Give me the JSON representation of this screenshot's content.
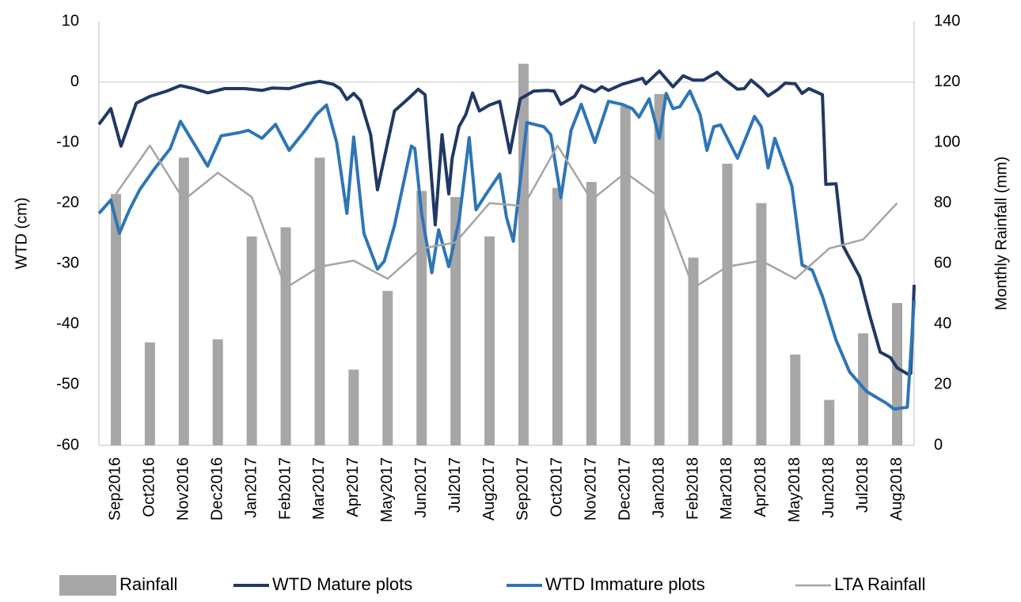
{
  "chart_data": {
    "type": "combo",
    "y_label": "WTD (cm)",
    "y2_label": "Monthly Rainfall (mm)",
    "categories": [
      "Sep2016",
      "Oct2016",
      "Nov2016",
      "Dec2016",
      "Jan2017",
      "Feb2017",
      "Mar2017",
      "Apr2017",
      "May2017",
      "Jun2017",
      "Jul2017",
      "Aug2017",
      "Sep2017",
      "Oct2017",
      "Nov2017",
      "Dec2017",
      "Jan2018",
      "Feb2018",
      "Mar2018",
      "Apr2018",
      "May2018",
      "Jun2018",
      "Jul2018",
      "Aug2018"
    ],
    "ylim": [
      -60,
      10
    ],
    "yticks": [
      -60,
      -50,
      -40,
      -30,
      -20,
      -10,
      0,
      10
    ],
    "y2lim": [
      0,
      140
    ],
    "y2ticks": [
      0,
      20,
      40,
      60,
      80,
      100,
      120,
      140
    ],
    "series": [
      {
        "name": "Rainfall",
        "type": "bar",
        "axis": "y2",
        "color": "#a6a6a6",
        "values": [
          83,
          34,
          95,
          35,
          69,
          72,
          95,
          25,
          51,
          84,
          82,
          69,
          126,
          85,
          87,
          112,
          116,
          62,
          93,
          80,
          30,
          15,
          37,
          47
        ]
      },
      {
        "name": "WTD Mature plots",
        "type": "line",
        "color": "#203864",
        "x": [
          -0.5,
          -0.15,
          0.15,
          0.6,
          1.0,
          1.5,
          1.9,
          2.3,
          2.7,
          3.2,
          3.8,
          4.3,
          4.6,
          5.1,
          5.6,
          6.0,
          6.4,
          6.6,
          6.8,
          7.0,
          7.2,
          7.5,
          7.7,
          7.9,
          8.2,
          8.6,
          8.9,
          9.1,
          9.3,
          9.4,
          9.6,
          9.8,
          9.9,
          10.1,
          10.3,
          10.5,
          10.7,
          11.0,
          11.3,
          11.6,
          11.9,
          12.3,
          12.7,
          12.9,
          13.1,
          13.5,
          13.7,
          14.1,
          14.3,
          14.5,
          14.9,
          15.2,
          15.5,
          15.6,
          16.0,
          16.4,
          16.7,
          17.0,
          17.3,
          17.7,
          17.9,
          18.3,
          18.5,
          18.7,
          19.0,
          19.2,
          19.5,
          19.7,
          20.0,
          20.2,
          20.4,
          20.8,
          20.9,
          21.2,
          21.4,
          21.9,
          22.2,
          22.5,
          22.8,
          23.0,
          23.3,
          23.4,
          23.5
        ],
        "values": [
          -7.0,
          -4.4,
          -10.6,
          -3.5,
          -2.4,
          -1.5,
          -0.6,
          -1.1,
          -1.8,
          -1.1,
          -1.1,
          -1.4,
          -1.0,
          -1.1,
          -0.3,
          0.1,
          -0.4,
          -1.1,
          -2.9,
          -1.9,
          -3.1,
          -8.7,
          -17.8,
          -12.6,
          -4.8,
          -2.8,
          -1.2,
          -2.1,
          -16.5,
          -23.6,
          -8.7,
          -18.5,
          -12.6,
          -7.4,
          -5.4,
          -1.8,
          -4.8,
          -3.8,
          -3.2,
          -11.7,
          -2.8,
          -1.5,
          -1.4,
          -1.5,
          -3.7,
          -2.4,
          -0.6,
          -1.6,
          -0.8,
          -1.4,
          -0.4,
          0.1,
          0.6,
          -0.3,
          1.8,
          -0.8,
          1.0,
          0.3,
          0.3,
          1.6,
          0.5,
          -1.2,
          -1.1,
          0.3,
          -1.1,
          -2.3,
          -1.2,
          -0.2,
          -0.3,
          -1.9,
          -1.1,
          -2.1,
          -16.9,
          -16.8,
          -27.0,
          -32.2,
          -38.7,
          -44.6,
          -45.5,
          -47.2,
          -48.2,
          -48.1,
          -33.5
        ]
      },
      {
        "name": "WTD Immature plots",
        "type": "line",
        "color": "#2e75b6",
        "x": [
          -0.5,
          -0.15,
          0.1,
          0.4,
          0.7,
          1.1,
          1.6,
          1.9,
          2.3,
          2.7,
          3.1,
          3.6,
          3.9,
          4.3,
          4.7,
          5.1,
          5.6,
          5.9,
          6.2,
          6.5,
          6.8,
          7.0,
          7.3,
          7.7,
          7.9,
          8.2,
          8.7,
          8.8,
          9.0,
          9.3,
          9.5,
          9.8,
          10.1,
          10.4,
          10.6,
          10.9,
          11.3,
          11.5,
          11.7,
          12.1,
          12.6,
          12.8,
          13.1,
          13.4,
          13.7,
          14.1,
          14.5,
          14.9,
          15.2,
          15.4,
          15.7,
          16.0,
          16.2,
          16.4,
          16.6,
          16.9,
          17.2,
          17.4,
          17.6,
          17.8,
          18.3,
          18.8,
          19.0,
          19.2,
          19.4,
          19.9,
          20.2,
          20.5,
          20.8,
          21.2,
          21.6,
          22.1,
          22.7,
          22.9,
          23.3,
          23.5
        ],
        "values": [
          -21.7,
          -19.5,
          -25.0,
          -21.1,
          -17.8,
          -14.6,
          -11.0,
          -6.5,
          -10.2,
          -13.9,
          -8.9,
          -8.4,
          -8.0,
          -9.3,
          -7.0,
          -11.3,
          -7.8,
          -5.4,
          -3.8,
          -10.0,
          -21.7,
          -9.1,
          -25.0,
          -30.9,
          -29.6,
          -23.7,
          -10.6,
          -11.0,
          -21.7,
          -31.5,
          -24.4,
          -30.5,
          -23.0,
          -9.2,
          -21.1,
          -18.5,
          -15.2,
          -22.4,
          -26.3,
          -6.7,
          -7.4,
          -8.7,
          -19.1,
          -8.0,
          -3.7,
          -10.0,
          -3.2,
          -3.7,
          -4.4,
          -5.8,
          -2.8,
          -9.3,
          -1.9,
          -4.4,
          -4.1,
          -1.5,
          -5.4,
          -11.3,
          -7.4,
          -7.1,
          -12.6,
          -5.7,
          -7.4,
          -14.2,
          -9.3,
          -17.2,
          -30.2,
          -31.1,
          -35.4,
          -42.6,
          -47.9,
          -51.1,
          -53.1,
          -54.0,
          -53.7,
          -36.1
        ]
      },
      {
        "name": "LTA Rainfall",
        "type": "line",
        "axis": "y2",
        "color": "#a5a5a5",
        "values": [
          83,
          99,
          81,
          90,
          82,
          52,
          59,
          61,
          55,
          65,
          67,
          80,
          79,
          99,
          81,
          90,
          82,
          52,
          59,
          61,
          55,
          65,
          68,
          80
        ]
      }
    ]
  }
}
